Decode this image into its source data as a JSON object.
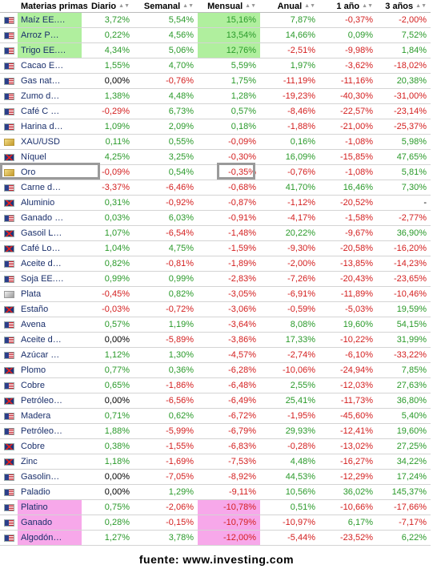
{
  "headers": {
    "name": "Materias primas",
    "daily": "Diario",
    "weekly": "Semanal",
    "monthly": "Mensual",
    "annual": "Anual",
    "one_year": "1 año",
    "three_years": "3 años"
  },
  "sort_icon": "sort-arrows-icon",
  "colors": {
    "positive": "#2a9a2a",
    "negative": "#d42020",
    "highlight_green": "#b0ef9e",
    "highlight_pink": "#f7a8ea",
    "box_gray": "#9a9a9a"
  },
  "rows": [
    {
      "flag": "us",
      "name": "Maíz EE.…",
      "daily": "3,72%",
      "weekly": "5,54%",
      "monthly": "15,16%",
      "annual": "7,87%",
      "one_year": "-0,37%",
      "three_years": "-2,00%",
      "hl": "green"
    },
    {
      "flag": "us",
      "name": "Arroz P…",
      "daily": "0,22%",
      "weekly": "4,56%",
      "monthly": "13,54%",
      "annual": "14,66%",
      "one_year": "0,09%",
      "three_years": "7,52%",
      "hl": "green"
    },
    {
      "flag": "us",
      "name": "Trigo EE.…",
      "daily": "4,34%",
      "weekly": "5,06%",
      "monthly": "12,76%",
      "annual": "-2,51%",
      "one_year": "-9,98%",
      "three_years": "1,84%",
      "hl": "green"
    },
    {
      "flag": "us",
      "name": "Cacao E…",
      "daily": "1,55%",
      "weekly": "4,70%",
      "monthly": "5,59%",
      "annual": "1,97%",
      "one_year": "-3,62%",
      "three_years": "-18,02%"
    },
    {
      "flag": "us",
      "name": "Gas nat…",
      "daily": "0,00%",
      "weekly": "-0,76%",
      "monthly": "1,75%",
      "annual": "-11,19%",
      "one_year": "-11,16%",
      "three_years": "20,38%"
    },
    {
      "flag": "us",
      "name": "Zumo d…",
      "daily": "1,38%",
      "weekly": "4,48%",
      "monthly": "1,28%",
      "annual": "-19,23%",
      "one_year": "-40,30%",
      "three_years": "-31,00%"
    },
    {
      "flag": "us",
      "name": "Café C …",
      "daily": "-0,29%",
      "weekly": "6,73%",
      "monthly": "0,57%",
      "annual": "-8,46%",
      "one_year": "-22,57%",
      "three_years": "-23,14%"
    },
    {
      "flag": "us",
      "name": "Harina d…",
      "daily": "1,09%",
      "weekly": "2,09%",
      "monthly": "0,18%",
      "annual": "-1,88%",
      "one_year": "-21,00%",
      "three_years": "-25,37%"
    },
    {
      "flag": "gold",
      "name": "XAU/USD",
      "daily": "0,11%",
      "weekly": "0,55%",
      "monthly": "-0,09%",
      "annual": "0,16%",
      "one_year": "-1,08%",
      "three_years": "5,98%"
    },
    {
      "flag": "gb",
      "name": "Níquel",
      "daily": "4,25%",
      "weekly": "3,25%",
      "monthly": "-0,30%",
      "annual": "16,09%",
      "one_year": "-15,85%",
      "three_years": "47,65%"
    },
    {
      "flag": "gold",
      "name": "Oro",
      "daily": "-0,09%",
      "weekly": "0,54%",
      "monthly": "-0,35%",
      "annual": "-0,76%",
      "one_year": "-1,08%",
      "three_years": "5,81%",
      "boxed": true
    },
    {
      "flag": "us",
      "name": "Carne d…",
      "daily": "-3,37%",
      "weekly": "-6,46%",
      "monthly": "-0,68%",
      "annual": "41,70%",
      "one_year": "16,46%",
      "three_years": "7,30%"
    },
    {
      "flag": "gb",
      "name": "Aluminio",
      "daily": "0,31%",
      "weekly": "-0,92%",
      "monthly": "-0,87%",
      "annual": "-1,12%",
      "one_year": "-20,52%",
      "three_years": "-"
    },
    {
      "flag": "us",
      "name": "Ganado …",
      "daily": "0,03%",
      "weekly": "6,03%",
      "monthly": "-0,91%",
      "annual": "-4,17%",
      "one_year": "-1,58%",
      "three_years": "-2,77%"
    },
    {
      "flag": "gb",
      "name": "Gasoil L…",
      "daily": "1,07%",
      "weekly": "-6,54%",
      "monthly": "-1,48%",
      "annual": "20,22%",
      "one_year": "-9,67%",
      "three_years": "36,90%"
    },
    {
      "flag": "gb",
      "name": "Café Lo…",
      "daily": "1,04%",
      "weekly": "4,75%",
      "monthly": "-1,59%",
      "annual": "-9,30%",
      "one_year": "-20,58%",
      "three_years": "-16,20%"
    },
    {
      "flag": "us",
      "name": "Aceite d…",
      "daily": "0,82%",
      "weekly": "-0,81%",
      "monthly": "-1,89%",
      "annual": "-2,00%",
      "one_year": "-13,85%",
      "three_years": "-14,23%"
    },
    {
      "flag": "us",
      "name": "Soja EE.…",
      "daily": "0,99%",
      "weekly": "0,99%",
      "monthly": "-2,83%",
      "annual": "-7,26%",
      "one_year": "-20,43%",
      "three_years": "-23,65%"
    },
    {
      "flag": "silver",
      "name": "Plata",
      "daily": "-0,45%",
      "weekly": "0,82%",
      "monthly": "-3,05%",
      "annual": "-6,91%",
      "one_year": "-11,89%",
      "three_years": "-10,46%"
    },
    {
      "flag": "gb",
      "name": "Estaño",
      "daily": "-0,03%",
      "weekly": "-0,72%",
      "monthly": "-3,06%",
      "annual": "-0,59%",
      "one_year": "-5,03%",
      "three_years": "19,59%"
    },
    {
      "flag": "us",
      "name": "Avena",
      "daily": "0,57%",
      "weekly": "1,19%",
      "monthly": "-3,64%",
      "annual": "8,08%",
      "one_year": "19,60%",
      "three_years": "54,15%"
    },
    {
      "flag": "us",
      "name": "Aceite d…",
      "daily": "0,00%",
      "weekly": "-5,89%",
      "monthly": "-3,86%",
      "annual": "17,33%",
      "one_year": "-10,22%",
      "three_years": "31,99%"
    },
    {
      "flag": "us",
      "name": "Azúcar …",
      "daily": "1,12%",
      "weekly": "1,30%",
      "monthly": "-4,57%",
      "annual": "-2,74%",
      "one_year": "-6,10%",
      "three_years": "-33,22%"
    },
    {
      "flag": "gb",
      "name": "Plomo",
      "daily": "0,77%",
      "weekly": "0,36%",
      "monthly": "-6,28%",
      "annual": "-10,06%",
      "one_year": "-24,94%",
      "three_years": "7,85%"
    },
    {
      "flag": "us",
      "name": "Cobre",
      "daily": "0,65%",
      "weekly": "-1,86%",
      "monthly": "-6,48%",
      "annual": "2,55%",
      "one_year": "-12,03%",
      "three_years": "27,63%"
    },
    {
      "flag": "gb",
      "name": "Petróleo…",
      "daily": "0,00%",
      "weekly": "-6,56%",
      "monthly": "-6,49%",
      "annual": "25,41%",
      "one_year": "-11,73%",
      "three_years": "36,80%"
    },
    {
      "flag": "us",
      "name": "Madera",
      "daily": "0,71%",
      "weekly": "0,62%",
      "monthly": "-6,72%",
      "annual": "-1,95%",
      "one_year": "-45,60%",
      "three_years": "5,40%"
    },
    {
      "flag": "us",
      "name": "Petróleo…",
      "daily": "1,88%",
      "weekly": "-5,99%",
      "monthly": "-6,79%",
      "annual": "29,93%",
      "one_year": "-12,41%",
      "three_years": "19,60%"
    },
    {
      "flag": "gb",
      "name": "Cobre",
      "daily": "0,38%",
      "weekly": "-1,55%",
      "monthly": "-6,83%",
      "annual": "-0,28%",
      "one_year": "-13,02%",
      "three_years": "27,25%"
    },
    {
      "flag": "gb",
      "name": "Zinc",
      "daily": "1,18%",
      "weekly": "-1,69%",
      "monthly": "-7,53%",
      "annual": "4,48%",
      "one_year": "-16,27%",
      "three_years": "34,22%"
    },
    {
      "flag": "us",
      "name": "Gasolin…",
      "daily": "0,00%",
      "weekly": "-7,05%",
      "monthly": "-8,92%",
      "annual": "44,53%",
      "one_year": "-12,29%",
      "three_years": "17,24%"
    },
    {
      "flag": "us",
      "name": "Paladio",
      "daily": "0,00%",
      "weekly": "1,29%",
      "monthly": "-9,11%",
      "annual": "10,56%",
      "one_year": "36,02%",
      "three_years": "145,37%"
    },
    {
      "flag": "us",
      "name": "Platino",
      "daily": "0,75%",
      "weekly": "-2,06%",
      "monthly": "-10,78%",
      "annual": "0,51%",
      "one_year": "-10,66%",
      "three_years": "-17,66%",
      "hl": "pink"
    },
    {
      "flag": "us",
      "name": "Ganado",
      "daily": "0,28%",
      "weekly": "-0,15%",
      "monthly": "-10,79%",
      "annual": "-10,97%",
      "one_year": "6,17%",
      "three_years": "-7,17%",
      "hl": "pink"
    },
    {
      "flag": "us",
      "name": "Algodón…",
      "daily": "1,27%",
      "weekly": "3,78%",
      "monthly": "-12,00%",
      "annual": "-5,44%",
      "one_year": "-23,52%",
      "three_years": "6,22%",
      "hl": "pink"
    }
  ],
  "footer": "fuente: www.investing.com"
}
